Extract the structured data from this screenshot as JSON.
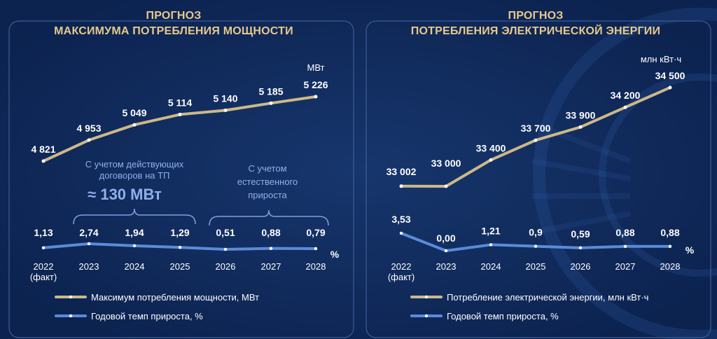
{
  "chart_data": [
    {
      "type": "line",
      "title_lines": [
        "ПРОГНОЗ",
        "МАКСИМУМА ПОТРЕБЛЕНИЯ МОЩНОСТИ"
      ],
      "categories": [
        "2022\n(факт)",
        "2023",
        "2024",
        "2025",
        "2026",
        "2027",
        "2028"
      ],
      "series": [
        {
          "name": "Максимум потребления мощности, МВт",
          "values": [
            4821,
            4953,
            5049,
            5114,
            5140,
            5185,
            5226
          ],
          "labels": [
            "4 821",
            "4 953",
            "5 049",
            "5 114",
            "5 140",
            "5 185",
            "5 226"
          ],
          "unit": "МВт",
          "color": "#cdb887"
        },
        {
          "name": "Годовой темп прироста, %",
          "values": [
            1.13,
            2.74,
            1.94,
            1.29,
            0.51,
            0.88,
            0.79
          ],
          "labels": [
            "1,13",
            "2,74",
            "1,94",
            "1,29",
            "0,51",
            "0,88",
            "0,79"
          ],
          "unit": "%",
          "color": "#5b8bd8"
        }
      ],
      "annotations": [
        {
          "text": [
            "С учетом действующих",
            "договоров на ТП"
          ],
          "value": "≈ 130 МВт",
          "span": [
            1,
            3
          ]
        },
        {
          "text": [
            "С учетом",
            "естественного",
            "прироста"
          ],
          "span": [
            4,
            6
          ]
        }
      ],
      "legend_placement": "bottom-left"
    },
    {
      "type": "line",
      "title_lines": [
        "ПРОГНОЗ",
        "ПОТРЕБЛЕНИЯ ЭЛЕКТРИЧЕСКОЙ ЭНЕРГИИ"
      ],
      "categories": [
        "2022\n(факт)",
        "2023",
        "2024",
        "2025",
        "2026",
        "2027",
        "2028"
      ],
      "series": [
        {
          "name": "Потребление электрической энергии, млн кВт·ч",
          "values": [
            33002,
            33000,
            33400,
            33700,
            33900,
            34200,
            34500
          ],
          "labels": [
            "33 002",
            "33 000",
            "33 400",
            "33 700",
            "33 900",
            "34 200",
            "34 500"
          ],
          "unit": "млн кВт·ч",
          "color": "#cdb887"
        },
        {
          "name": "Годовой темп прироста, %",
          "values": [
            3.53,
            0.0,
            1.21,
            0.9,
            0.59,
            0.88,
            0.88
          ],
          "labels": [
            "3,53",
            "0,00",
            "1,21",
            "0,9",
            "0,59",
            "0,88",
            "0,88"
          ],
          "unit": "%",
          "color": "#5b8bd8"
        }
      ],
      "legend_placement": "bottom-left"
    }
  ]
}
